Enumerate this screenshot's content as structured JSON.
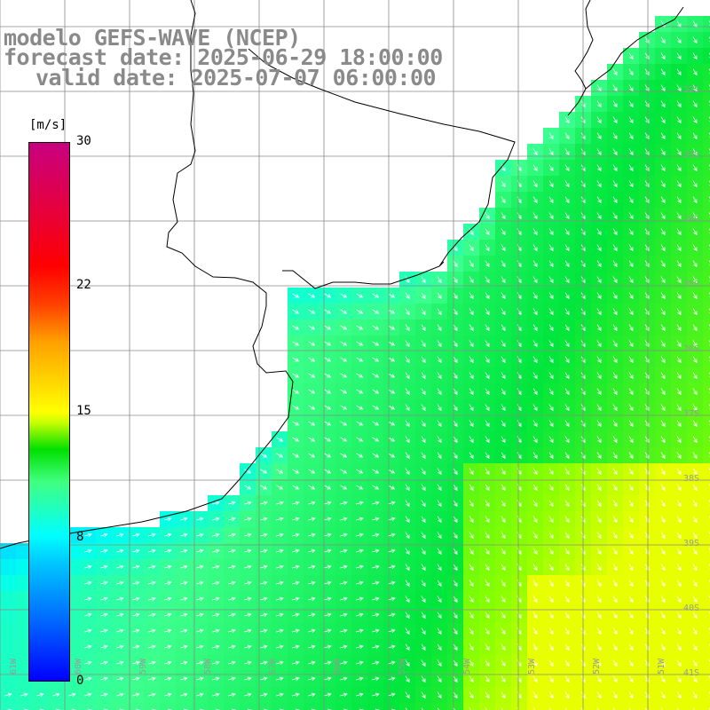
{
  "title": {
    "line1": "modelo GEFS-WAVE (NCEP)",
    "line2": "forecast date: 2025-06-29 18:00:00",
    "line3": "valid date: 2025-07-07 06:00:00"
  },
  "colorbar": {
    "unit": "[m/s]",
    "ticks": [
      {
        "label": "30",
        "value": 30
      },
      {
        "label": "22",
        "value": 22
      },
      {
        "label": "15",
        "value": 15
      },
      {
        "label": "8",
        "value": 8
      },
      {
        "label": "0",
        "value": 0
      }
    ],
    "min": 0,
    "max": 30
  },
  "map": {
    "lat_labels": [
      "32S",
      "33S",
      "34S",
      "35S",
      "36S",
      "37S",
      "38S",
      "39S",
      "40S",
      "41S"
    ],
    "lon_labels": [
      "61W",
      "60W",
      "59W",
      "58W",
      "57W",
      "56W",
      "55W",
      "54W",
      "53W",
      "52W",
      "51W"
    ],
    "colors": {
      "land": "#ffffff",
      "grid": "#808080",
      "coast": "#000000",
      "arrow": "#ffffff"
    }
  }
}
